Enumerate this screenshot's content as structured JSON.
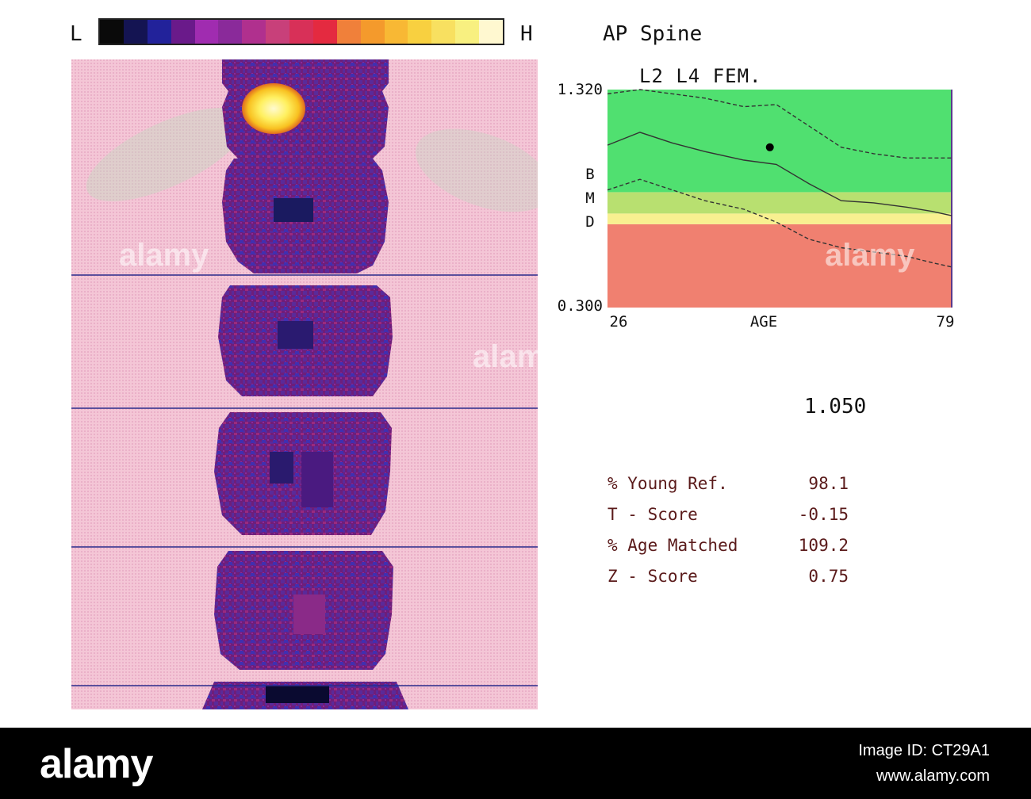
{
  "scale": {
    "low_label": "L",
    "high_label": "H",
    "colors": [
      "#0a0a0a",
      "#141452",
      "#22229a",
      "#6a1a8a",
      "#a02cb0",
      "#8a2a9a",
      "#b0308e",
      "#c8407a",
      "#d83058",
      "#e42a40",
      "#f0803a",
      "#f49a2c",
      "#f8b834",
      "#f8d040",
      "#f8e060",
      "#f8f080",
      "#fff8d0"
    ]
  },
  "scan_title": "AP Spine",
  "scan_colors": {
    "background": "#f4c4d4",
    "bone": "#6a1f78",
    "bone_dark": "#3a1a8a",
    "bone_mid": "#8a2a9a",
    "hot_core": "#fff060",
    "hot_edge": "#f0a020",
    "divider": "#2a2a8a",
    "soft_tissue": "#c8d8c8"
  },
  "chart_data": {
    "type": "line",
    "title": "L2 L4 FEM.",
    "xlabel": "AGE",
    "ylabel": "BMD",
    "xlim": [
      26,
      79
    ],
    "ylim": [
      0.3,
      1.32
    ],
    "x_tick_labels": [
      "26",
      "79"
    ],
    "y_tick_labels": [
      "1.320",
      "0.300"
    ],
    "bands": [
      {
        "from": 0.3,
        "to": 0.69,
        "color": "#f08070"
      },
      {
        "from": 0.69,
        "to": 0.74,
        "color": "#f8f090"
      },
      {
        "from": 0.74,
        "to": 0.84,
        "color": "#b8e070"
      },
      {
        "from": 0.84,
        "to": 1.32,
        "color": "#50e070"
      }
    ],
    "series": [
      {
        "style": "dashed",
        "x": [
          26,
          31,
          36,
          41,
          47,
          52,
          57,
          62,
          67,
          72,
          76,
          79
        ],
        "y": [
          1.3,
          1.32,
          1.3,
          1.28,
          1.24,
          1.25,
          1.15,
          1.05,
          1.02,
          1.0,
          1.0,
          1.0
        ]
      },
      {
        "style": "solid",
        "x": [
          26,
          31,
          36,
          41,
          47,
          52,
          57,
          62,
          67,
          72,
          76,
          79
        ],
        "y": [
          1.06,
          1.12,
          1.07,
          1.03,
          0.99,
          0.97,
          0.88,
          0.8,
          0.79,
          0.77,
          0.75,
          0.73
        ]
      },
      {
        "style": "dashed",
        "x": [
          26,
          31,
          36,
          41,
          47,
          52,
          57,
          62,
          67,
          72,
          76,
          79
        ],
        "y": [
          0.85,
          0.9,
          0.85,
          0.8,
          0.76,
          0.7,
          0.62,
          0.58,
          0.56,
          0.54,
          0.51,
          0.49
        ]
      }
    ],
    "patient_point": {
      "x": 51,
      "y": 1.05
    }
  },
  "results": {
    "bmd": "1.050",
    "stats": [
      {
        "label": "% Young Ref.",
        "value": "98.1"
      },
      {
        "label": "T - Score",
        "value": "-0.15"
      },
      {
        "label": "% Age Matched",
        "value": "109.2"
      },
      {
        "label": "Z - Score",
        "value": "0.75"
      }
    ]
  },
  "footer": {
    "brand": "alamy",
    "image_id": "Image ID: CT29A1",
    "url": "www.alamy.com"
  },
  "watermark": "alamy"
}
